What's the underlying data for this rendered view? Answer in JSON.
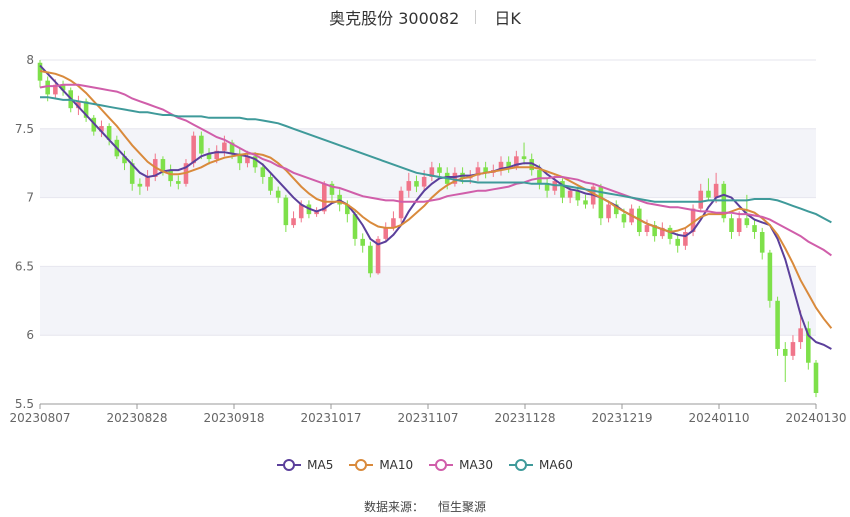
{
  "header": {
    "stock": "奥克股份 300082",
    "period": "日K"
  },
  "source": {
    "label": "数据来源：",
    "value": "恒生聚源"
  },
  "colors": {
    "up": "#f0758a",
    "down": "#7ee04a",
    "grid_band": "#f3f4f9",
    "axis": "#999999"
  },
  "chart_data": {
    "type": "candlestick",
    "ylim": [
      5.5,
      8
    ],
    "yticks": [
      "8",
      "7.5",
      "7",
      "6.5",
      "6",
      "5.5"
    ],
    "xticks": [
      "20230807",
      "20230828",
      "20230918",
      "20231017",
      "20231107",
      "20231128",
      "20231219",
      "20240110",
      "20240130"
    ],
    "candles": [
      [
        7.98,
        7.85,
        8.0,
        7.8
      ],
      [
        7.85,
        7.75,
        7.88,
        7.7
      ],
      [
        7.75,
        7.82,
        7.86,
        7.72
      ],
      [
        7.82,
        7.78,
        7.85,
        7.74
      ],
      [
        7.78,
        7.65,
        7.8,
        7.62
      ],
      [
        7.65,
        7.7,
        7.74,
        7.6
      ],
      [
        7.7,
        7.58,
        7.72,
        7.55
      ],
      [
        7.58,
        7.48,
        7.6,
        7.45
      ],
      [
        7.48,
        7.52,
        7.56,
        7.44
      ],
      [
        7.52,
        7.42,
        7.54,
        7.38
      ],
      [
        7.42,
        7.3,
        7.45,
        7.28
      ],
      [
        7.3,
        7.25,
        7.34,
        7.2
      ],
      [
        7.25,
        7.1,
        7.28,
        7.05
      ],
      [
        7.1,
        7.08,
        7.14,
        7.02
      ],
      [
        7.08,
        7.15,
        7.2,
        7.05
      ],
      [
        7.15,
        7.28,
        7.32,
        7.12
      ],
      [
        7.28,
        7.2,
        7.3,
        7.16
      ],
      [
        7.2,
        7.12,
        7.24,
        7.08
      ],
      [
        7.12,
        7.1,
        7.16,
        7.06
      ],
      [
        7.1,
        7.25,
        7.28,
        7.08
      ],
      [
        7.25,
        7.45,
        7.48,
        7.22
      ],
      [
        7.45,
        7.32,
        7.48,
        7.28
      ],
      [
        7.32,
        7.28,
        7.36,
        7.24
      ],
      [
        7.28,
        7.34,
        7.38,
        7.25
      ],
      [
        7.34,
        7.4,
        7.45,
        7.3
      ],
      [
        7.4,
        7.32,
        7.42,
        7.28
      ],
      [
        7.32,
        7.25,
        7.36,
        7.2
      ],
      [
        7.25,
        7.3,
        7.34,
        7.22
      ],
      [
        7.3,
        7.22,
        7.33,
        7.18
      ],
      [
        7.22,
        7.15,
        7.25,
        7.1
      ],
      [
        7.15,
        7.05,
        7.18,
        7.02
      ],
      [
        7.05,
        7.0,
        7.08,
        6.96
      ],
      [
        7.0,
        6.8,
        7.02,
        6.75
      ],
      [
        6.8,
        6.85,
        6.9,
        6.78
      ],
      [
        6.85,
        6.95,
        6.98,
        6.82
      ],
      [
        6.95,
        6.88,
        6.98,
        6.85
      ],
      [
        6.88,
        6.9,
        6.93,
        6.86
      ],
      [
        6.9,
        7.1,
        7.12,
        6.88
      ],
      [
        7.1,
        7.02,
        7.12,
        6.98
      ],
      [
        7.02,
        6.95,
        7.06,
        6.9
      ],
      [
        6.95,
        6.88,
        6.98,
        6.82
      ],
      [
        6.88,
        6.7,
        6.9,
        6.65
      ],
      [
        6.7,
        6.65,
        6.74,
        6.6
      ],
      [
        6.65,
        6.45,
        6.68,
        6.42
      ],
      [
        6.45,
        6.7,
        6.72,
        6.44
      ],
      [
        6.7,
        6.78,
        6.82,
        6.68
      ],
      [
        6.78,
        6.85,
        6.9,
        6.76
      ],
      [
        6.85,
        7.05,
        7.08,
        6.82
      ],
      [
        7.05,
        7.12,
        7.18,
        7.0
      ],
      [
        7.12,
        7.08,
        7.16,
        7.04
      ],
      [
        7.08,
        7.15,
        7.2,
        7.05
      ],
      [
        7.15,
        7.22,
        7.26,
        7.12
      ],
      [
        7.22,
        7.18,
        7.25,
        7.14
      ],
      [
        7.18,
        7.1,
        7.22,
        7.06
      ],
      [
        7.1,
        7.18,
        7.22,
        7.08
      ],
      [
        7.18,
        7.14,
        7.22,
        7.1
      ],
      [
        7.14,
        7.16,
        7.2,
        7.1
      ],
      [
        7.16,
        7.22,
        7.26,
        7.12
      ],
      [
        7.22,
        7.18,
        7.26,
        7.14
      ],
      [
        7.18,
        7.2,
        7.24,
        7.15
      ],
      [
        7.2,
        7.26,
        7.3,
        7.16
      ],
      [
        7.26,
        7.22,
        7.3,
        7.18
      ],
      [
        7.22,
        7.3,
        7.34,
        7.2
      ],
      [
        7.3,
        7.28,
        7.4,
        7.24
      ],
      [
        7.28,
        7.2,
        7.32,
        7.16
      ],
      [
        7.2,
        7.1,
        7.24,
        7.06
      ],
      [
        7.1,
        7.05,
        7.14,
        7.0
      ],
      [
        7.05,
        7.12,
        7.16,
        7.02
      ],
      [
        7.12,
        7.0,
        7.14,
        6.96
      ],
      [
        7.0,
        7.05,
        7.08,
        6.96
      ],
      [
        7.05,
        6.98,
        7.08,
        6.94
      ],
      [
        6.98,
        6.95,
        7.02,
        6.92
      ],
      [
        6.95,
        7.08,
        7.1,
        6.92
      ],
      [
        7.08,
        6.85,
        7.1,
        6.8
      ],
      [
        6.85,
        6.95,
        6.98,
        6.82
      ],
      [
        6.95,
        6.88,
        6.98,
        6.85
      ],
      [
        6.88,
        6.82,
        6.92,
        6.78
      ],
      [
        6.82,
        6.92,
        6.95,
        6.8
      ],
      [
        6.92,
        6.75,
        6.94,
        6.72
      ],
      [
        6.75,
        6.8,
        6.84,
        6.72
      ],
      [
        6.8,
        6.72,
        6.83,
        6.68
      ],
      [
        6.72,
        6.78,
        6.82,
        6.7
      ],
      [
        6.78,
        6.7,
        6.8,
        6.66
      ],
      [
        6.7,
        6.65,
        6.74,
        6.6
      ],
      [
        6.65,
        6.75,
        6.78,
        6.62
      ],
      [
        6.75,
        6.92,
        6.95,
        6.72
      ],
      [
        6.92,
        7.05,
        7.1,
        6.9
      ],
      [
        7.05,
        7.0,
        7.14,
        6.98
      ],
      [
        7.0,
        7.1,
        7.18,
        6.96
      ],
      [
        7.1,
        6.85,
        7.12,
        6.82
      ],
      [
        6.85,
        6.75,
        6.88,
        6.7
      ],
      [
        6.75,
        6.85,
        6.9,
        6.72
      ],
      [
        6.85,
        6.8,
        7.02,
        6.78
      ],
      [
        6.8,
        6.75,
        6.84,
        6.7
      ],
      [
        6.75,
        6.6,
        6.78,
        6.55
      ],
      [
        6.6,
        6.25,
        6.62,
        6.2
      ],
      [
        6.25,
        5.9,
        6.28,
        5.85
      ],
      [
        5.9,
        5.85,
        5.95,
        5.66
      ],
      [
        5.85,
        5.95,
        6.0,
        5.82
      ],
      [
        5.95,
        6.05,
        6.18,
        5.9
      ],
      [
        6.05,
        5.8,
        6.1,
        5.75
      ],
      [
        5.8,
        5.58,
        5.82,
        5.55
      ]
    ],
    "series": [
      {
        "name": "MA5",
        "color": "#5b3f9b",
        "values": [
          7.96,
          7.9,
          7.84,
          7.78,
          7.72,
          7.66,
          7.6,
          7.54,
          7.48,
          7.42,
          7.36,
          7.3,
          7.24,
          7.18,
          7.15,
          7.16,
          7.19,
          7.2,
          7.2,
          7.22,
          7.26,
          7.3,
          7.32,
          7.33,
          7.33,
          7.32,
          7.31,
          7.3,
          7.28,
          7.24,
          7.18,
          7.12,
          7.06,
          7.0,
          6.95,
          6.92,
          6.9,
          6.92,
          6.96,
          6.98,
          6.95,
          6.88,
          6.8,
          6.7,
          6.66,
          6.68,
          6.73,
          6.8,
          6.9,
          6.98,
          7.05,
          7.1,
          7.14,
          7.15,
          7.15,
          7.16,
          7.16,
          7.17,
          7.18,
          7.19,
          7.21,
          7.22,
          7.24,
          7.25,
          7.25,
          7.22,
          7.17,
          7.13,
          7.09,
          7.06,
          7.05,
          7.03,
          7.02,
          7.0,
          6.97,
          6.94,
          6.9,
          6.87,
          6.84,
          6.81,
          6.79,
          6.77,
          6.75,
          6.73,
          6.72,
          6.76,
          6.84,
          6.93,
          7.0,
          7.02,
          7.0,
          6.94,
          6.88,
          6.84,
          6.82,
          6.8,
          6.7,
          6.55,
          6.35,
          6.15,
          6.0,
          5.95,
          5.93,
          5.9
        ]
      },
      {
        "name": "MA10",
        "color": "#d98a3c",
        "values": [
          7.92,
          7.91,
          7.9,
          7.88,
          7.85,
          7.81,
          7.76,
          7.7,
          7.64,
          7.58,
          7.52,
          7.45,
          7.38,
          7.32,
          7.26,
          7.22,
          7.19,
          7.17,
          7.17,
          7.18,
          7.2,
          7.22,
          7.25,
          7.27,
          7.29,
          7.3,
          7.31,
          7.32,
          7.32,
          7.31,
          7.29,
          7.25,
          7.2,
          7.14,
          7.08,
          7.03,
          6.99,
          6.97,
          6.97,
          6.97,
          6.95,
          6.91,
          6.86,
          6.82,
          6.79,
          6.78,
          6.78,
          6.8,
          6.84,
          6.89,
          6.94,
          7.0,
          7.05,
          7.09,
          7.12,
          7.14,
          7.15,
          7.17,
          7.18,
          7.19,
          7.2,
          7.21,
          7.22,
          7.22,
          7.22,
          7.21,
          7.19,
          7.17,
          7.15,
          7.12,
          7.09,
          7.06,
          7.03,
          7.0,
          6.97,
          6.93,
          6.9,
          6.87,
          6.84,
          6.81,
          6.79,
          6.77,
          6.75,
          6.76,
          6.78,
          6.82,
          6.86,
          6.88,
          6.88,
          6.88,
          6.9,
          6.92,
          6.91,
          6.89,
          6.85,
          6.8,
          6.73,
          6.63,
          6.52,
          6.4,
          6.3,
          6.2,
          6.12,
          6.05
        ]
      },
      {
        "name": "MA30",
        "color": "#d05eaa",
        "values": [
          7.8,
          7.81,
          7.81,
          7.82,
          7.82,
          7.82,
          7.81,
          7.8,
          7.79,
          7.78,
          7.77,
          7.75,
          7.72,
          7.7,
          7.68,
          7.66,
          7.64,
          7.61,
          7.58,
          7.56,
          7.53,
          7.5,
          7.47,
          7.44,
          7.42,
          7.39,
          7.36,
          7.33,
          7.31,
          7.28,
          7.26,
          7.23,
          7.21,
          7.18,
          7.16,
          7.14,
          7.12,
          7.1,
          7.08,
          7.07,
          7.05,
          7.03,
          7.01,
          7.0,
          6.99,
          6.98,
          6.98,
          6.97,
          6.97,
          6.97,
          6.97,
          6.98,
          6.99,
          7.01,
          7.02,
          7.03,
          7.04,
          7.05,
          7.05,
          7.06,
          7.07,
          7.08,
          7.1,
          7.11,
          7.13,
          7.14,
          7.14,
          7.15,
          7.15,
          7.14,
          7.13,
          7.11,
          7.1,
          7.08,
          7.06,
          7.04,
          7.02,
          7.0,
          6.98,
          6.96,
          6.95,
          6.94,
          6.93,
          6.93,
          6.92,
          6.91,
          6.9,
          6.9,
          6.89,
          6.89,
          6.89,
          6.88,
          6.88,
          6.87,
          6.86,
          6.84,
          6.81,
          6.78,
          6.75,
          6.72,
          6.68,
          6.65,
          6.62,
          6.58
        ]
      },
      {
        "name": "MA60",
        "color": "#3f9a9a",
        "values": [
          7.73,
          7.73,
          7.72,
          7.71,
          7.71,
          7.7,
          7.69,
          7.68,
          7.67,
          7.66,
          7.65,
          7.64,
          7.63,
          7.62,
          7.62,
          7.61,
          7.6,
          7.6,
          7.59,
          7.59,
          7.59,
          7.59,
          7.58,
          7.58,
          7.58,
          7.58,
          7.58,
          7.57,
          7.57,
          7.56,
          7.55,
          7.54,
          7.52,
          7.5,
          7.48,
          7.46,
          7.44,
          7.42,
          7.4,
          7.38,
          7.36,
          7.34,
          7.32,
          7.3,
          7.28,
          7.26,
          7.24,
          7.22,
          7.2,
          7.18,
          7.17,
          7.16,
          7.15,
          7.14,
          7.13,
          7.12,
          7.12,
          7.11,
          7.11,
          7.11,
          7.11,
          7.11,
          7.11,
          7.11,
          7.1,
          7.1,
          7.1,
          7.09,
          7.09,
          7.08,
          7.07,
          7.06,
          7.05,
          7.04,
          7.03,
          7.02,
          7.01,
          7.0,
          6.99,
          6.98,
          6.97,
          6.97,
          6.97,
          6.97,
          6.97,
          6.97,
          6.97,
          6.98,
          6.98,
          6.98,
          6.98,
          6.98,
          6.98,
          6.99,
          6.99,
          6.99,
          6.98,
          6.96,
          6.94,
          6.92,
          6.9,
          6.88,
          6.85,
          6.82
        ]
      }
    ]
  }
}
